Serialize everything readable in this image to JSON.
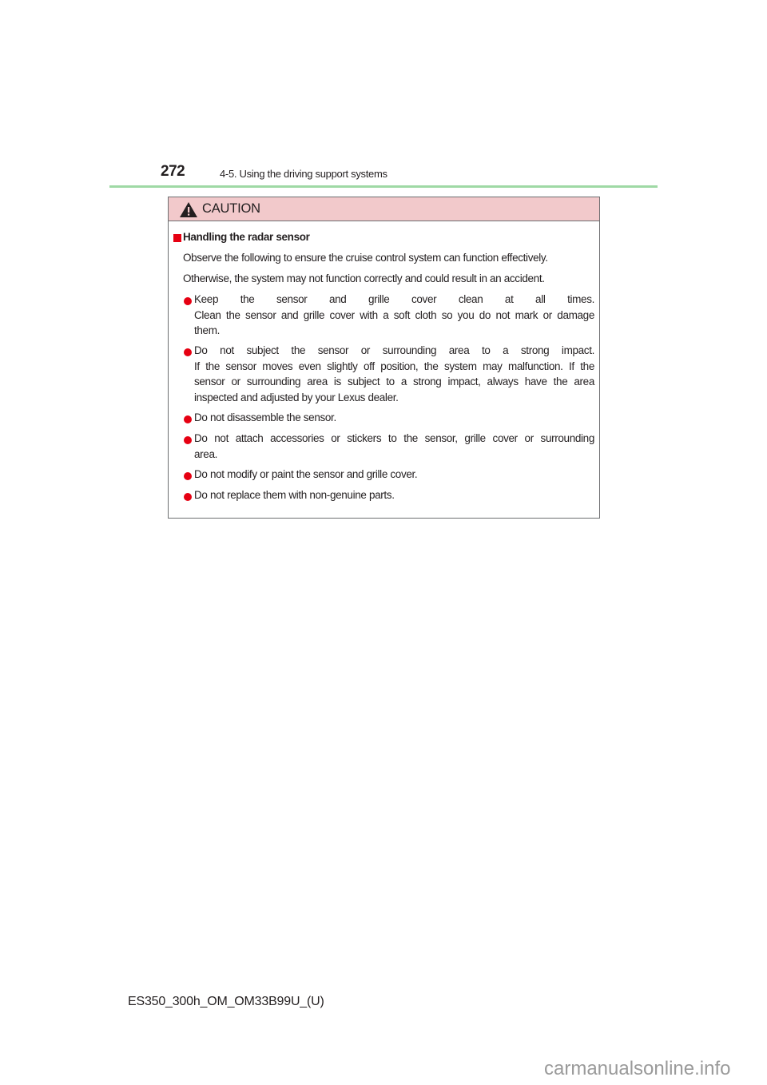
{
  "header": {
    "page_number": "272",
    "section": "4-5. Using the driving support systems"
  },
  "caution": {
    "title": "CAUTION",
    "icon": "warning-triangle-icon",
    "heading": "Handling the radar sensor",
    "intro": [
      "Observe the following to ensure the cruise control system can function effectively.",
      "Otherwise, the system may not function correctly and could result in an accident."
    ],
    "bullets": [
      {
        "lines": [
          "Keep the sensor and grille cover clean at all times.",
          "Clean the sensor and grille cover with a soft cloth so you do not mark or damage",
          "them."
        ]
      },
      {
        "lines": [
          "Do not subject the sensor or surrounding area to a strong impact.",
          "If the sensor moves even slightly off position, the system may malfunction. If the",
          "sensor or surrounding area is subject to a strong impact, always have the area",
          "inspected and adjusted by your Lexus dealer."
        ]
      },
      {
        "lines": [
          "Do not disassemble the sensor."
        ]
      },
      {
        "lines": [
          "Do not attach accessories or stickers to the sensor, grille cover or surrounding",
          "area."
        ]
      },
      {
        "lines": [
          "Do not modify or paint the sensor and grille cover."
        ]
      },
      {
        "lines": [
          "Do not replace them with non-genuine parts."
        ]
      }
    ]
  },
  "footer": {
    "doc_code": "ES350_300h_OM_OM33B99U_(U)"
  },
  "watermark": "carmanualsonline.info",
  "colors": {
    "accent_red": "#e60012",
    "caution_bg": "#f2c9cb",
    "rule_green": "#9fd9a5"
  }
}
